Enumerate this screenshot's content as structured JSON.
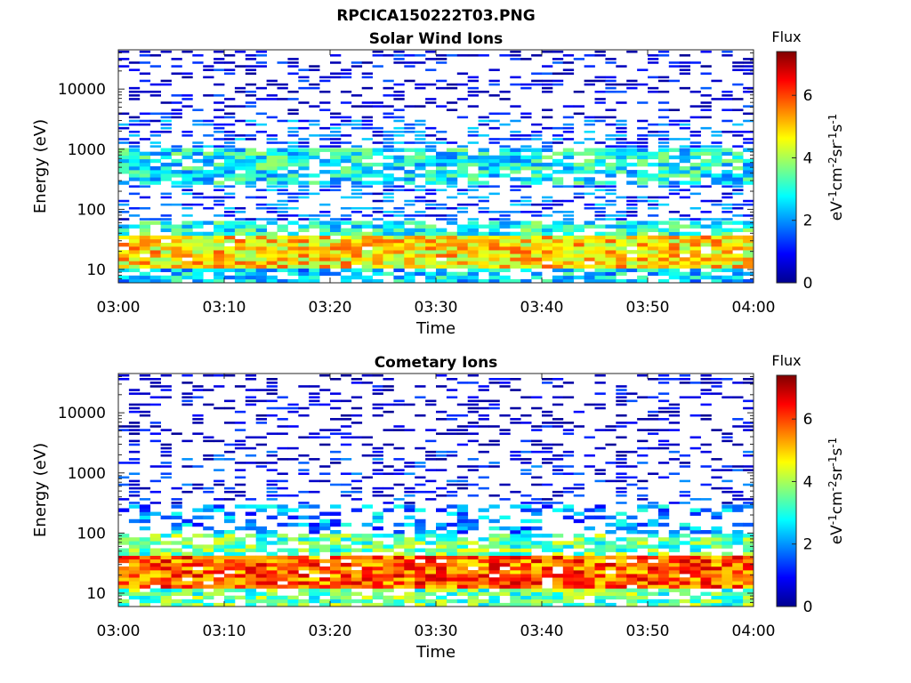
{
  "figure": {
    "title": "RPCICA150222T03.PNG"
  },
  "chart_data": [
    {
      "type": "heatmap",
      "title": "Solar Wind Ions",
      "xlabel": "Time",
      "ylabel": "Energy (eV)",
      "x_ticks": [
        "03:00",
        "03:10",
        "03:20",
        "03:30",
        "03:40",
        "03:50",
        "04:00"
      ],
      "xlim": [
        "03:00",
        "04:00"
      ],
      "y_scale": "log",
      "ylim": [
        6,
        45000
      ],
      "y_ticks": [
        "10",
        "100",
        "1000",
        "10000"
      ],
      "colorbar": {
        "label_top": "Flux",
        "unit_label": "eV-1cm-2sr-1s-1",
        "range": [
          0,
          7.4
        ],
        "ticks": [
          "0",
          "2",
          "4",
          "6"
        ],
        "colormap": "jet"
      },
      "energy_band_summary": [
        {
          "energy_range_eV": [
            6,
            10
          ],
          "typical_flux": 2.5
        },
        {
          "energy_range_eV": [
            10,
            35
          ],
          "typical_flux": 4.8
        },
        {
          "energy_range_eV": [
            35,
            60
          ],
          "typical_flux": 3.0
        },
        {
          "energy_range_eV": [
            60,
            250
          ],
          "typical_flux": 1.5
        },
        {
          "energy_range_eV": [
            250,
            1000
          ],
          "typical_flux": 2.8
        },
        {
          "energy_range_eV": [
            1000,
            3000
          ],
          "typical_flux": 1.5
        },
        {
          "energy_range_eV": [
            3000,
            45000
          ],
          "typical_flux": 0.6
        }
      ]
    },
    {
      "type": "heatmap",
      "title": "Cometary Ions",
      "xlabel": "Time",
      "ylabel": "Energy (eV)",
      "x_ticks": [
        "03:00",
        "03:10",
        "03:20",
        "03:30",
        "03:40",
        "03:50",
        "04:00"
      ],
      "xlim": [
        "03:00",
        "04:00"
      ],
      "y_scale": "log",
      "ylim": [
        6,
        45000
      ],
      "y_ticks": [
        "10",
        "100",
        "1000",
        "10000"
      ],
      "colorbar": {
        "label_top": "Flux",
        "unit_label": "eV-1cm-2sr-1s-1",
        "range": [
          0,
          7.4
        ],
        "ticks": [
          "0",
          "2",
          "4",
          "6"
        ],
        "colormap": "jet"
      },
      "energy_band_summary": [
        {
          "energy_range_eV": [
            6,
            12
          ],
          "typical_flux": 3.5
        },
        {
          "energy_range_eV": [
            12,
            40
          ],
          "typical_flux": 5.8
        },
        {
          "energy_range_eV": [
            40,
            100
          ],
          "typical_flux": 3.5
        },
        {
          "energy_range_eV": [
            100,
            300
          ],
          "typical_flux": 2.0
        },
        {
          "energy_range_eV": [
            300,
            2500
          ],
          "typical_flux": 0.9
        },
        {
          "energy_range_eV": [
            2500,
            45000
          ],
          "typical_flux": 0.4
        }
      ]
    }
  ]
}
